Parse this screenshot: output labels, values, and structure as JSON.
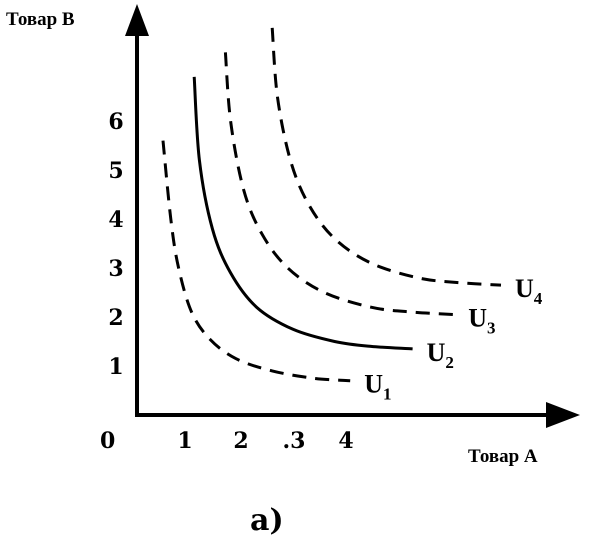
{
  "chart_data": {
    "type": "line",
    "xlabel": "Товар А",
    "ylabel": "Товар В",
    "origin_label": "0",
    "x_ticks": [
      "1",
      "2",
      ".3",
      "4"
    ],
    "y_ticks": [
      "1",
      "2",
      "3",
      "4",
      "5",
      "6"
    ],
    "caption": "а)",
    "grid": false,
    "series": [
      {
        "name": "U",
        "sub": "1",
        "style": "dashed",
        "x": [
          0.5,
          0.65,
          0.8,
          1.05,
          1.4,
          1.9,
          2.6,
          3.4,
          4.1
        ],
        "y": [
          5.6,
          4.0,
          3.0,
          2.1,
          1.55,
          1.15,
          0.9,
          0.75,
          0.7
        ]
      },
      {
        "name": "U",
        "sub": "2",
        "style": "solid",
        "x": [
          1.1,
          1.2,
          1.45,
          1.8,
          2.3,
          3.0,
          3.8,
          4.5,
          5.3
        ],
        "y": [
          6.9,
          5.2,
          3.8,
          2.9,
          2.2,
          1.75,
          1.5,
          1.4,
          1.35
        ]
      },
      {
        "name": "U",
        "sub": "3",
        "style": "dashed",
        "x": [
          1.7,
          1.8,
          2.05,
          2.4,
          2.9,
          3.6,
          4.5,
          5.3,
          6.1
        ],
        "y": [
          7.4,
          6.0,
          4.6,
          3.7,
          3.0,
          2.5,
          2.2,
          2.1,
          2.05
        ]
      },
      {
        "name": "U",
        "sub": "4",
        "style": "dashed",
        "x": [
          2.6,
          2.7,
          2.95,
          3.3,
          3.8,
          4.5,
          5.4,
          6.2,
          7.0
        ],
        "y": [
          7.9,
          6.5,
          5.2,
          4.3,
          3.6,
          3.1,
          2.8,
          2.7,
          2.65
        ]
      }
    ]
  }
}
